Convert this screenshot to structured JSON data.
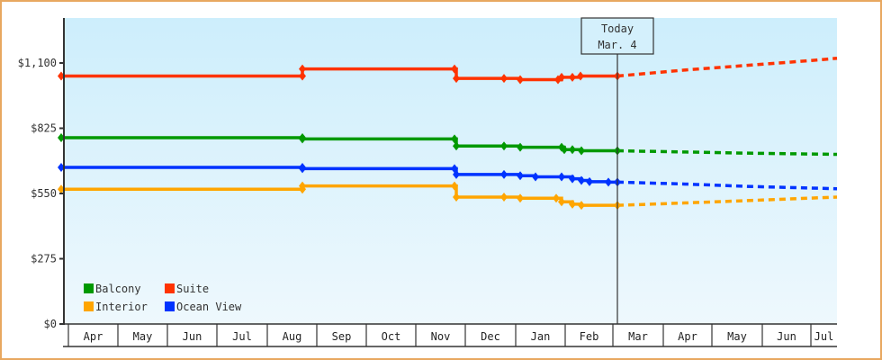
{
  "chart_data": {
    "type": "line",
    "title": "",
    "xlabel": "",
    "ylabel": "",
    "ylim": [
      0,
      1250
    ],
    "y_ticks": [
      {
        "value": 0,
        "label": "$0"
      },
      {
        "value": 275,
        "label": "$275"
      },
      {
        "value": 550,
        "label": "$550"
      },
      {
        "value": 825,
        "label": "$825"
      },
      {
        "value": 1100,
        "label": "$1,100"
      }
    ],
    "x_ticks": [
      "Apr",
      "May",
      "Jun",
      "Jul",
      "Aug",
      "Sep",
      "Oct",
      "Nov",
      "Dec",
      "Jan",
      "Feb",
      "Mar",
      "Apr",
      "May",
      "Jun",
      "Jul"
    ],
    "today_marker": {
      "line1": "Today",
      "line2": "Mar. 4"
    },
    "legend": [
      {
        "name": "Balcony",
        "color": "#009900"
      },
      {
        "name": "Suite",
        "color": "#ff3300"
      },
      {
        "name": "Interior",
        "color": "#ffa500"
      },
      {
        "name": "Ocean View",
        "color": "#0033ff"
      }
    ],
    "series": [
      {
        "name": "Suite",
        "color": "#ff3300",
        "historical": [
          [
            68,
            1045
          ],
          [
            336,
            1045
          ],
          [
            336,
            1075
          ],
          [
            505,
            1075
          ],
          [
            507,
            1035
          ],
          [
            560,
            1035
          ],
          [
            578,
            1030
          ],
          [
            620,
            1030
          ],
          [
            624,
            1040
          ],
          [
            636,
            1040
          ],
          [
            645,
            1045
          ],
          [
            686,
            1045
          ]
        ],
        "forecast": [
          [
            686,
            1045
          ],
          [
            760,
            1070
          ],
          [
            830,
            1090
          ],
          [
            900,
            1110
          ],
          [
            930,
            1120
          ]
        ]
      },
      {
        "name": "Balcony",
        "color": "#009900",
        "historical": [
          [
            68,
            785
          ],
          [
            336,
            785
          ],
          [
            336,
            780
          ],
          [
            505,
            780
          ],
          [
            507,
            750
          ],
          [
            560,
            750
          ],
          [
            578,
            745
          ],
          [
            624,
            745
          ],
          [
            627,
            735
          ],
          [
            636,
            735
          ],
          [
            646,
            730
          ],
          [
            686,
            730
          ]
        ],
        "forecast": [
          [
            686,
            730
          ],
          [
            760,
            725
          ],
          [
            830,
            720
          ],
          [
            930,
            715
          ]
        ]
      },
      {
        "name": "Ocean View",
        "color": "#0033ff",
        "historical": [
          [
            68,
            660
          ],
          [
            336,
            660
          ],
          [
            336,
            655
          ],
          [
            505,
            655
          ],
          [
            507,
            630
          ],
          [
            560,
            630
          ],
          [
            578,
            625
          ],
          [
            595,
            620
          ],
          [
            624,
            620
          ],
          [
            636,
            612
          ],
          [
            646,
            605
          ],
          [
            655,
            600
          ],
          [
            676,
            598
          ],
          [
            686,
            598
          ]
        ],
        "forecast": [
          [
            686,
            598
          ],
          [
            760,
            590
          ],
          [
            830,
            580
          ],
          [
            930,
            570
          ]
        ]
      },
      {
        "name": "Interior",
        "color": "#ffa500",
        "historical": [
          [
            68,
            568
          ],
          [
            336,
            568
          ],
          [
            336,
            582
          ],
          [
            505,
            582
          ],
          [
            507,
            535
          ],
          [
            560,
            535
          ],
          [
            578,
            530
          ],
          [
            618,
            530
          ],
          [
            624,
            515
          ],
          [
            636,
            505
          ],
          [
            646,
            500
          ],
          [
            686,
            500
          ]
        ],
        "forecast": [
          [
            686,
            500
          ],
          [
            760,
            510
          ],
          [
            830,
            520
          ],
          [
            930,
            535
          ]
        ]
      }
    ]
  }
}
